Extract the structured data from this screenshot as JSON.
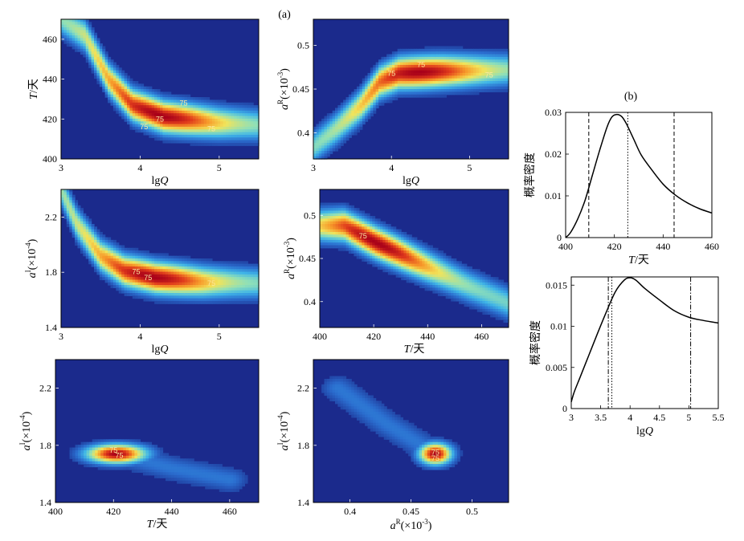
{
  "figure": {
    "panel_a_label": "(a)",
    "panel_b_label": "(b)",
    "colormap": [
      "#1b2a8c",
      "#2b6fd0",
      "#3fb5e8",
      "#8fe0b8",
      "#f2e45a",
      "#f79a2a",
      "#e03b1c",
      "#a8001a"
    ]
  },
  "chart_data": [
    {
      "id": "h1",
      "type": "heatmap",
      "xlabel": "lgQ",
      "ylabel": "T/天",
      "xlim": [
        3,
        5.5
      ],
      "ylim": [
        400,
        470
      ],
      "xticks": [
        "3",
        "4",
        "5"
      ],
      "yticks": [
        "400",
        "420",
        "440",
        "460"
      ],
      "xtick_values": [
        3,
        4,
        5
      ],
      "ytick_values": [
        400,
        420,
        440,
        460
      ],
      "ridge": [
        [
          3.0,
          470
        ],
        [
          3.3,
          462
        ],
        [
          3.6,
          440
        ],
        [
          3.9,
          427
        ],
        [
          4.3,
          421
        ],
        [
          5.0,
          418
        ],
        [
          5.5,
          417
        ]
      ],
      "peak": [
        4.25,
        421
      ],
      "contour_labels": [
        {
          "text": "75",
          "x": 4.55,
          "y": 428
        },
        {
          "text": "75",
          "x": 4.9,
          "y": 415
        },
        {
          "text": "75",
          "x": 4.25,
          "y": 420
        },
        {
          "text": "75",
          "x": 4.05,
          "y": 416
        }
      ]
    },
    {
      "id": "h2",
      "type": "heatmap",
      "xlabel": "lgQ",
      "ylabel": "aR(×10-3)",
      "ylabel_parts": {
        "main": "a",
        "sup": "R",
        "paren": "(×10",
        "exp": "-3",
        "close": ")"
      },
      "xlim": [
        3,
        5.5
      ],
      "ylim": [
        0.37,
        0.53
      ],
      "xticks": [
        "3",
        "4",
        "5"
      ],
      "yticks": [
        "0.4",
        "0.45",
        "0.5"
      ],
      "xtick_values": [
        3,
        4,
        5
      ],
      "ytick_values": [
        0.4,
        0.45,
        0.5
      ],
      "ridge": [
        [
          3.0,
          0.383
        ],
        [
          3.3,
          0.405
        ],
        [
          3.6,
          0.43
        ],
        [
          3.85,
          0.458
        ],
        [
          4.1,
          0.468
        ],
        [
          4.6,
          0.47
        ],
        [
          5.5,
          0.472
        ]
      ],
      "peak": [
        4.35,
        0.468
      ],
      "contour_labels": [
        {
          "text": "75",
          "x": 4.38,
          "y": 0.478
        },
        {
          "text": "75",
          "x": 5.25,
          "y": 0.466
        },
        {
          "text": "75",
          "x": 4.0,
          "y": 0.468
        }
      ]
    },
    {
      "id": "h3",
      "type": "heatmap",
      "xlabel": "lgQ",
      "ylabel": "aI(×10-4)",
      "ylabel_parts": {
        "main": "a",
        "sup": "I",
        "paren": "(×10",
        "exp": "-4",
        "close": ")"
      },
      "xlim": [
        3,
        5.5
      ],
      "ylim": [
        1.4,
        2.4
      ],
      "xticks": [
        "3",
        "4",
        "5"
      ],
      "yticks": [
        "1.4",
        "1.8",
        "2.2"
      ],
      "xtick_values": [
        3,
        4,
        5
      ],
      "ytick_values": [
        1.4,
        1.8,
        2.2
      ],
      "ridge": [
        [
          3.0,
          2.4
        ],
        [
          3.2,
          2.15
        ],
        [
          3.5,
          1.92
        ],
        [
          3.8,
          1.81
        ],
        [
          4.2,
          1.76
        ],
        [
          4.8,
          1.73
        ],
        [
          5.5,
          1.72
        ]
      ],
      "peak": [
        4.15,
        1.765
      ],
      "contour_labels": [
        {
          "text": "75",
          "x": 3.95,
          "y": 1.805
        },
        {
          "text": "75",
          "x": 4.1,
          "y": 1.76
        },
        {
          "text": "75",
          "x": 4.9,
          "y": 1.72
        }
      ]
    },
    {
      "id": "h4",
      "type": "heatmap",
      "xlabel": "T/天",
      "ylabel": "aR(×10-3)",
      "ylabel_parts": {
        "main": "a",
        "sup": "R",
        "paren": "(×10",
        "exp": "-3",
        "close": ")"
      },
      "xlim": [
        400,
        470
      ],
      "ylim": [
        0.37,
        0.53
      ],
      "xticks": [
        "400",
        "420",
        "440",
        "460"
      ],
      "yticks": [
        "0.4",
        "0.45",
        "0.5"
      ],
      "xtick_values": [
        400,
        420,
        440,
        460
      ],
      "ytick_values": [
        0.4,
        0.45,
        0.5
      ],
      "ridge": [
        [
          409,
          0.488
        ],
        [
          415,
          0.478
        ],
        [
          421,
          0.468
        ],
        [
          428,
          0.458
        ],
        [
          440,
          0.44
        ],
        [
          455,
          0.418
        ],
        [
          470,
          0.398
        ]
      ],
      "peak": [
        421,
        0.468
      ],
      "contour_labels": [
        {
          "text": "75",
          "x": 416,
          "y": 0.476
        }
      ]
    },
    {
      "id": "h5",
      "type": "heatmap",
      "xlabel": "T/天",
      "ylabel": "aI(×10-4)",
      "ylabel_parts": {
        "main": "a",
        "sup": "I",
        "paren": "(×10",
        "exp": "-4",
        "close": ")"
      },
      "xlim": [
        400,
        470
      ],
      "ylim": [
        1.4,
        2.4
      ],
      "xticks": [
        "400",
        "420",
        "440",
        "460"
      ],
      "yticks": [
        "1.4",
        "1.8",
        "2.2"
      ],
      "xtick_values": [
        400,
        420,
        440,
        460
      ],
      "ytick_values": [
        1.4,
        1.8,
        2.2
      ],
      "blob": {
        "center": [
          421,
          1.74
        ],
        "spread": [
          7,
          0.045
        ]
      },
      "tail": [
        [
          421,
          1.74
        ],
        [
          440,
          1.64
        ],
        [
          460,
          1.56
        ]
      ],
      "contour_labels": [
        {
          "text": "75",
          "x": 420,
          "y": 1.765
        },
        {
          "text": "75",
          "x": 422,
          "y": 1.73
        }
      ]
    },
    {
      "id": "h6",
      "type": "heatmap",
      "xlabel": "aR(×10-3)",
      "ylabel": "aI(×10-4)",
      "xlabel_parts": {
        "main": "a",
        "sup": "R",
        "paren": "(×10",
        "exp": "-3",
        "close": ")"
      },
      "ylabel_parts": {
        "main": "a",
        "sup": "I",
        "paren": "(×10",
        "exp": "-4",
        "close": ")"
      },
      "xlim": [
        0.37,
        0.53
      ],
      "ylim": [
        1.4,
        2.4
      ],
      "xticks": [
        "0.4",
        "0.45",
        "0.5"
      ],
      "yticks": [
        "1.4",
        "1.8",
        "2.2"
      ],
      "xtick_values": [
        0.4,
        0.45,
        0.5
      ],
      "ytick_values": [
        1.4,
        1.8,
        2.2
      ],
      "blob": {
        "center": [
          0.47,
          1.74
        ],
        "spread": [
          0.009,
          0.05
        ]
      },
      "tail": [
        [
          0.47,
          1.74
        ],
        [
          0.43,
          1.95
        ],
        [
          0.39,
          2.2
        ]
      ],
      "contour_labels": [
        {
          "text": "75",
          "x": 0.47,
          "y": 1.75
        },
        {
          "text": "75",
          "x": 0.47,
          "y": 1.71
        }
      ]
    },
    {
      "id": "b1",
      "type": "line",
      "xlabel": "T/天",
      "ylabel": "概率密度",
      "xlim": [
        400,
        460
      ],
      "ylim": [
        0,
        0.03
      ],
      "xticks": [
        "400",
        "420",
        "440",
        "460"
      ],
      "yticks": [
        "0",
        "0.01",
        "0.02",
        "0.03"
      ],
      "xtick_values": [
        400,
        420,
        440,
        460
      ],
      "ytick_values": [
        0,
        0.01,
        0.02,
        0.03
      ],
      "x": [
        400,
        402,
        405,
        408,
        411,
        414,
        417,
        419,
        421,
        423,
        425,
        428,
        431,
        435,
        440,
        445,
        450,
        455,
        460
      ],
      "y": [
        0.0,
        0.0012,
        0.0045,
        0.009,
        0.015,
        0.021,
        0.0265,
        0.0289,
        0.0295,
        0.029,
        0.0272,
        0.0235,
        0.0198,
        0.0165,
        0.0128,
        0.0102,
        0.0083,
        0.0069,
        0.0059
      ],
      "vlines": [
        {
          "x": 409.5,
          "style": "dashed"
        },
        {
          "x": 425.5,
          "style": "dotted"
        },
        {
          "x": 444.5,
          "style": "dashed"
        }
      ]
    },
    {
      "id": "b2",
      "type": "line",
      "xlabel": "lgQ",
      "ylabel": "概率密度",
      "xlim": [
        3,
        5.5
      ],
      "ylim": [
        0,
        0.016
      ],
      "xticks": [
        "3",
        "3.5",
        "4",
        "4.5",
        "5",
        "5.5"
      ],
      "yticks": [
        "0",
        "0.005",
        "0.01",
        "0.015"
      ],
      "xtick_values": [
        3,
        3.5,
        4,
        4.5,
        5,
        5.5
      ],
      "ytick_values": [
        0,
        0.005,
        0.01,
        0.015
      ],
      "x": [
        3.0,
        3.05,
        3.15,
        3.3,
        3.45,
        3.6,
        3.75,
        3.9,
        4.0,
        4.1,
        4.25,
        4.5,
        4.75,
        5.0,
        5.25,
        5.5
      ],
      "y": [
        0.0008,
        0.002,
        0.0038,
        0.0065,
        0.0092,
        0.0118,
        0.0142,
        0.0156,
        0.0159,
        0.0156,
        0.0146,
        0.0132,
        0.0119,
        0.0111,
        0.0107,
        0.0104
      ],
      "vlines": [
        {
          "x": 3.63,
          "style": "dashdot"
        },
        {
          "x": 3.69,
          "style": "dotted"
        },
        {
          "x": 5.03,
          "style": "dashdot"
        }
      ]
    }
  ]
}
